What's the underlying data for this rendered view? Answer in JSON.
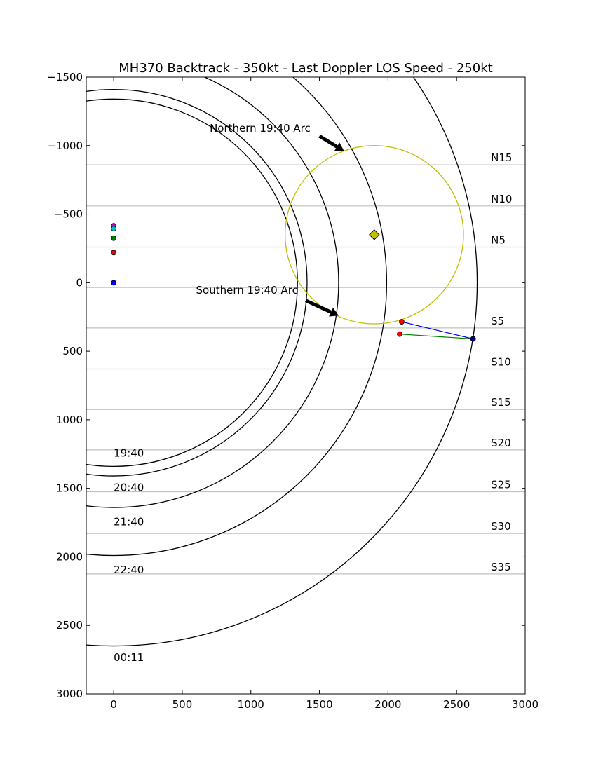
{
  "chart_data": {
    "type": "line",
    "title": "MH370 Backtrack - 350kt - Last Doppler LOS Speed - 250kt",
    "xlabel": "",
    "ylabel": "",
    "xlim": [
      -200,
      3000
    ],
    "ylim": [
      3000,
      -1500
    ],
    "y_inverted": true,
    "grid": false,
    "x_ticks": [
      0,
      500,
      1000,
      1500,
      2000,
      2500,
      3000
    ],
    "x_tick_labels": [
      "0",
      "500",
      "1000",
      "1500",
      "2000",
      "2500",
      "3000"
    ],
    "y_ticks": [
      -1500,
      -1000,
      -500,
      0,
      500,
      1000,
      1500,
      2000,
      2500,
      3000
    ],
    "y_tick_labels": [
      "−1500",
      "−1000",
      "−500",
      "0",
      "500",
      "1000",
      "1500",
      "2000",
      "2500",
      "3000"
    ],
    "arc_center": [
      0,
      0
    ],
    "arcs": [
      {
        "label": "19:40",
        "radius": 1340,
        "label_pos": [
          0,
          1270
        ]
      },
      {
        "label": "",
        "radius": 1410
      },
      {
        "label": "20:40",
        "radius": 1640,
        "label_pos": [
          0,
          1520
        ]
      },
      {
        "label": "21:40",
        "radius": 1990,
        "label_pos": [
          0,
          1770
        ]
      },
      {
        "label": "22:40",
        "radius": 2650,
        "label_pos": [
          0,
          2120
        ]
      },
      {
        "label": "00:11",
        "label_pos": [
          0,
          2760
        ]
      }
    ],
    "latitude_lines": [
      {
        "label": "N15",
        "y": -860
      },
      {
        "label": "N10",
        "y": -560
      },
      {
        "label": "N5",
        "y": -260
      },
      {
        "label": "",
        "y": 35
      },
      {
        "label": "S5",
        "y": 330
      },
      {
        "label": "S10",
        "y": 630
      },
      {
        "label": "S15",
        "y": 925
      },
      {
        "label": "S20",
        "y": 1220
      },
      {
        "label": "S25",
        "y": 1525
      },
      {
        "label": "S30",
        "y": 1830
      },
      {
        "label": "S35",
        "y": 2125
      }
    ],
    "latitude_label_x": 2750,
    "circle": {
      "center": [
        1900,
        -350
      ],
      "radius": 650,
      "color": "#bfbf00"
    },
    "diamond": {
      "x": 1900,
      "y": -350,
      "color": "#bfbf00"
    },
    "origin_points": [
      {
        "x": 0,
        "y": -415,
        "color": "#bf00bf"
      },
      {
        "x": 0,
        "y": -395,
        "color": "#00bfbf"
      },
      {
        "x": 0,
        "y": -325,
        "color": "#008000"
      },
      {
        "x": 0,
        "y": -220,
        "color": "#ff0000"
      },
      {
        "x": 0,
        "y": 0,
        "color": "#0000ff"
      }
    ],
    "segments": [
      {
        "from": [
          2100,
          285
        ],
        "to": [
          2620,
          410
        ],
        "color": "#0000ff",
        "from_color": "#ff0000",
        "to_color": "#00008b"
      },
      {
        "from": [
          2085,
          375
        ],
        "to": [
          2620,
          410
        ],
        "color": "#008000",
        "from_color": "#ff0000",
        "to_color": "#00008b"
      }
    ],
    "annotations": [
      {
        "text": "Northern 19:40 Arc",
        "text_x": 700,
        "text_y": -1100,
        "tail": [
          1500,
          -1070
        ],
        "head": [
          1680,
          -960
        ]
      },
      {
        "text": "Southern 19:40 Arc",
        "text_x": 600,
        "text_y": 80,
        "tail": [
          1400,
          130
        ],
        "head": [
          1640,
          240
        ]
      }
    ],
    "colors": {
      "arc": "#000000",
      "latitude": "#c0c0c0",
      "circle": "#bfbf00"
    }
  }
}
